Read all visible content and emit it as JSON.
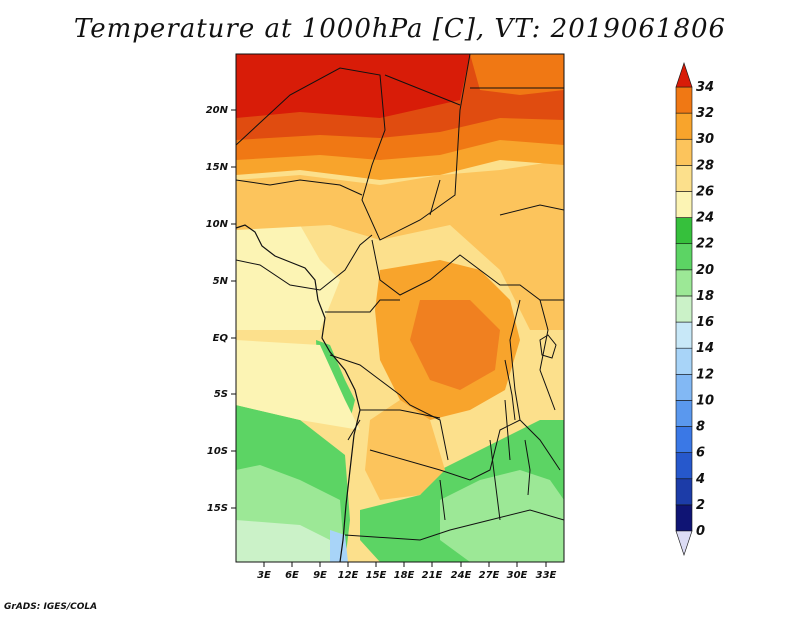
{
  "title": "Temperature at 1000hPa [C], VT: 2019061806",
  "credit": "GrADS: IGES/COLA",
  "map": {
    "lat_ticks": [
      "20N",
      "15N",
      "10N",
      "5N",
      "EQ",
      "5S",
      "10S",
      "15S"
    ],
    "lon_ticks": [
      "3E",
      "6E",
      "9E",
      "12E",
      "15E",
      "18E",
      "21E",
      "24E",
      "27E",
      "30E",
      "33E"
    ]
  },
  "colorbar": {
    "labels": [
      "0",
      "2",
      "4",
      "6",
      "8",
      "10",
      "12",
      "14",
      "16",
      "18",
      "20",
      "22",
      "24",
      "26",
      "28",
      "30",
      "32",
      "34"
    ],
    "colors": [
      "#0f1474",
      "#1c3ca8",
      "#2658cc",
      "#3a78e6",
      "#5a98ee",
      "#82b8f4",
      "#a8d4f8",
      "#c8e8f8",
      "#cbf2c8",
      "#9ce896",
      "#5cd464",
      "#36c03c",
      "#fcf4b4",
      "#fce08c",
      "#fcc45c",
      "#f8a42c",
      "#f07814",
      "#e04c10",
      "#d81c08"
    ],
    "under_color": "#dcdcf4",
    "over_color": "#d81c08"
  }
}
